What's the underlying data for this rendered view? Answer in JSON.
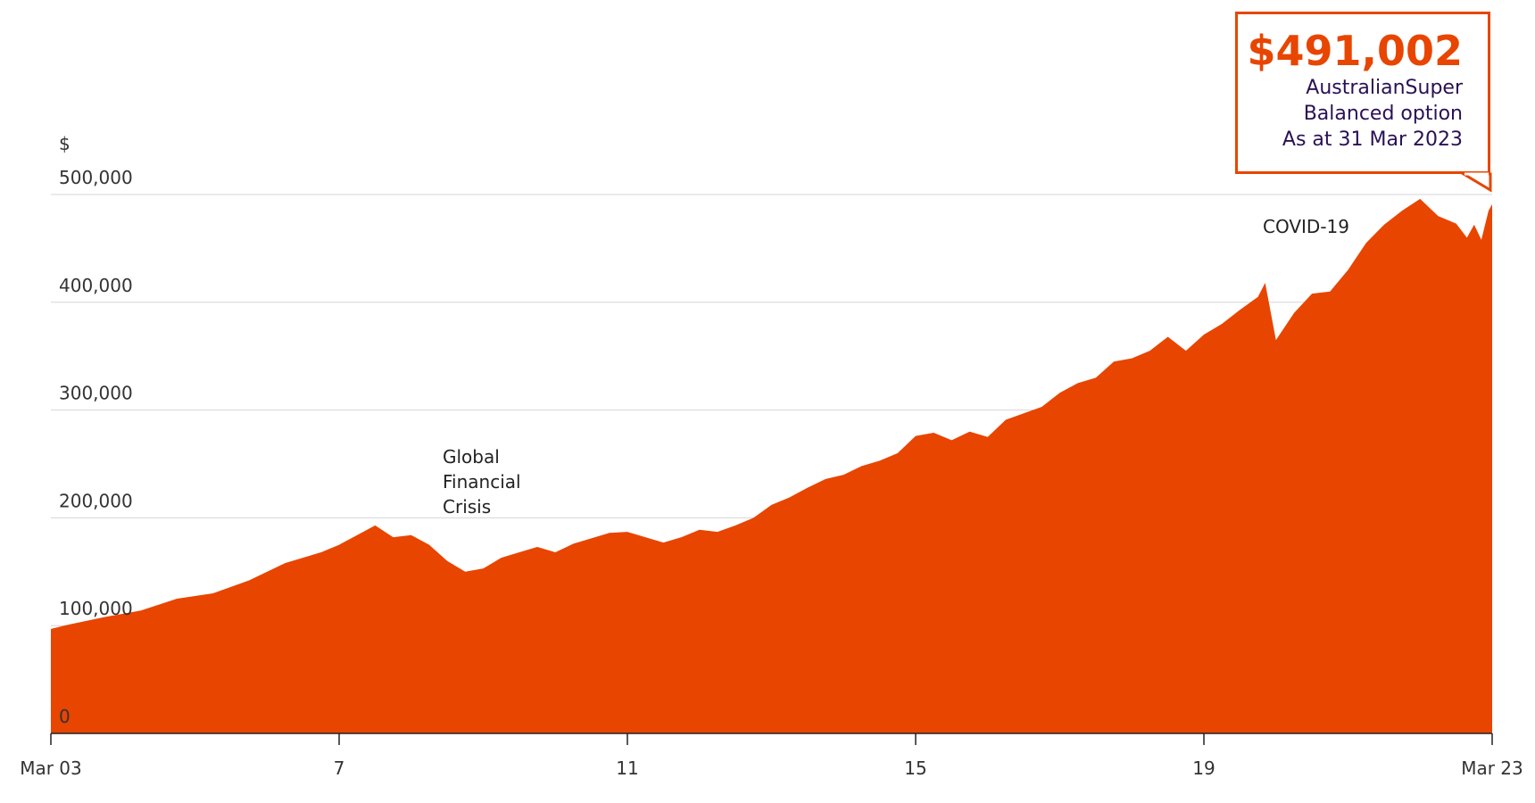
{
  "chart_data": {
    "type": "area",
    "y_label": "$",
    "color": "#e84500",
    "grid": true,
    "x": [
      2003.25,
      2003.5,
      2004.0,
      2004.5,
      2005.0,
      2005.5,
      2006.0,
      2006.5,
      2007.0,
      2007.25,
      2007.5,
      2007.75,
      2008.0,
      2008.25,
      2008.5,
      2008.75,
      2009.0,
      2009.25,
      2009.5,
      2009.75,
      2010.0,
      2010.25,
      2010.5,
      2010.75,
      2011.0,
      2011.25,
      2011.5,
      2011.75,
      2012.0,
      2012.25,
      2012.5,
      2012.75,
      2013.0,
      2013.25,
      2013.5,
      2013.75,
      2014.0,
      2014.25,
      2014.5,
      2014.75,
      2015.0,
      2015.25,
      2015.5,
      2015.75,
      2016.0,
      2016.25,
      2016.5,
      2016.75,
      2017.0,
      2017.25,
      2017.5,
      2017.75,
      2018.0,
      2018.25,
      2018.5,
      2018.75,
      2019.0,
      2019.25,
      2019.5,
      2019.75,
      2020.0,
      2020.1,
      2020.25,
      2020.5,
      2020.75,
      2021.0,
      2021.25,
      2021.5,
      2021.75,
      2022.0,
      2022.25,
      2022.5,
      2022.75,
      2022.9,
      2023.0,
      2023.1,
      2023.2,
      2023.25
    ],
    "values": [
      97000,
      101000,
      108000,
      114000,
      125000,
      130000,
      142000,
      158000,
      168000,
      175000,
      184000,
      193000,
      182000,
      184000,
      175000,
      160000,
      150000,
      153000,
      163000,
      168000,
      173000,
      168000,
      176000,
      181000,
      186000,
      187000,
      182000,
      177000,
      182000,
      189000,
      187000,
      193000,
      200000,
      212000,
      219000,
      228000,
      236000,
      240000,
      248000,
      253000,
      260000,
      276000,
      279000,
      272000,
      280000,
      275000,
      291000,
      297000,
      303000,
      316000,
      325000,
      330000,
      345000,
      348000,
      355000,
      368000,
      355000,
      370000,
      380000,
      393000,
      405000,
      418000,
      365000,
      390000,
      408000,
      410000,
      430000,
      455000,
      472000,
      485000,
      496000,
      480000,
      473000,
      460000,
      472000,
      458000,
      485000,
      491000
    ],
    "xlim": [
      2003.25,
      2023.25
    ],
    "xticks": [
      {
        "value": 2003.25,
        "label": "Mar 03"
      },
      {
        "value": 2007.25,
        "label": "7"
      },
      {
        "value": 2011.25,
        "label": "11"
      },
      {
        "value": 2015.25,
        "label": "15"
      },
      {
        "value": 2019.25,
        "label": "19"
      },
      {
        "value": 2023.25,
        "label": "Mar 23"
      }
    ],
    "ylim": [
      0,
      500000
    ],
    "yticks": [
      0,
      {
        "value": 100000,
        "label": "100,000"
      },
      {
        "value": 200000,
        "label": "200,000"
      },
      {
        "value": 300000,
        "label": "300,000"
      },
      {
        "value": 400000,
        "label": "400,000"
      },
      {
        "value": 500000,
        "label": "500,000"
      }
    ],
    "annotations": [
      "Global Financial Crisis",
      "COVID-19"
    ],
    "callout": {
      "headline": "$491,002",
      "lines": [
        "AustralianSuper",
        "Balanced option",
        "As at 31 Mar 2023"
      ]
    }
  }
}
